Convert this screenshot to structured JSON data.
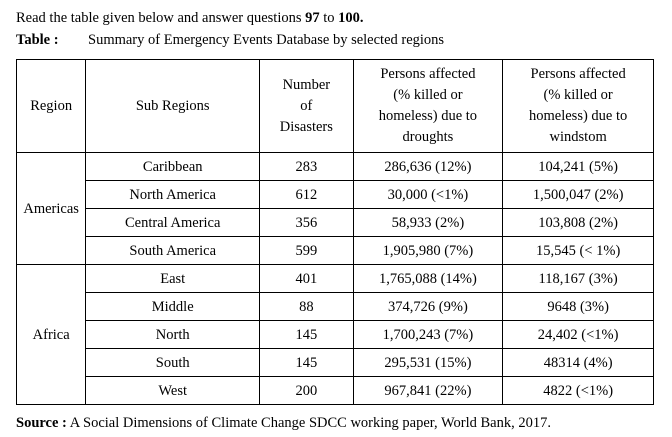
{
  "intro": {
    "prefix": "Read the table given below and answer questions",
    "q_from": "97",
    "to_word": "to",
    "q_to": "100."
  },
  "caption": {
    "label": "Table :",
    "text": "Summary of Emergency Events Database by selected regions"
  },
  "table": {
    "headers": {
      "region": "Region",
      "sub_regions": "Sub Regions",
      "number": [
        "Number",
        "of",
        "Disasters"
      ],
      "droughts": [
        "Persons affected",
        "(% killed or",
        "homeless) due to",
        "droughts"
      ],
      "windstorm": [
        "Persons affected",
        "(% killed or",
        "homeless) due to",
        "windstom"
      ]
    },
    "groups": [
      {
        "region": "Americas",
        "rows": [
          {
            "sub": "Caribbean",
            "num": "283",
            "drought": "286,636 (12%)",
            "wind": "104,241 (5%)"
          },
          {
            "sub": "North America",
            "num": "612",
            "drought": "30,000 (<1%)",
            "wind": "1,500,047 (2%)"
          },
          {
            "sub": "Central America",
            "num": "356",
            "drought": "58,933 (2%)",
            "wind": "103,808 (2%)"
          },
          {
            "sub": "South America",
            "num": "599",
            "drought": "1,905,980 (7%)",
            "wind": "15,545 (< 1%)"
          }
        ]
      },
      {
        "region": "Africa",
        "rows": [
          {
            "sub": "East",
            "num": "401",
            "drought": "1,765,088 (14%)",
            "wind": "118,167 (3%)"
          },
          {
            "sub": "Middle",
            "num": "88",
            "drought": "374,726 (9%)",
            "wind": "9648 (3%)"
          },
          {
            "sub": "North",
            "num": "145",
            "drought": "1,700,243 (7%)",
            "wind": "24,402 (<1%)"
          },
          {
            "sub": "South",
            "num": "145",
            "drought": "295,531 (15%)",
            "wind": "48314 (4%)"
          },
          {
            "sub": "West",
            "num": "200",
            "drought": "967,841 (22%)",
            "wind": "4822 (<1%)"
          }
        ]
      }
    ]
  },
  "source": {
    "label": "Source :",
    "text": "A Social Dimensions of Climate Change SDCC working paper, World Bank, 2017."
  }
}
